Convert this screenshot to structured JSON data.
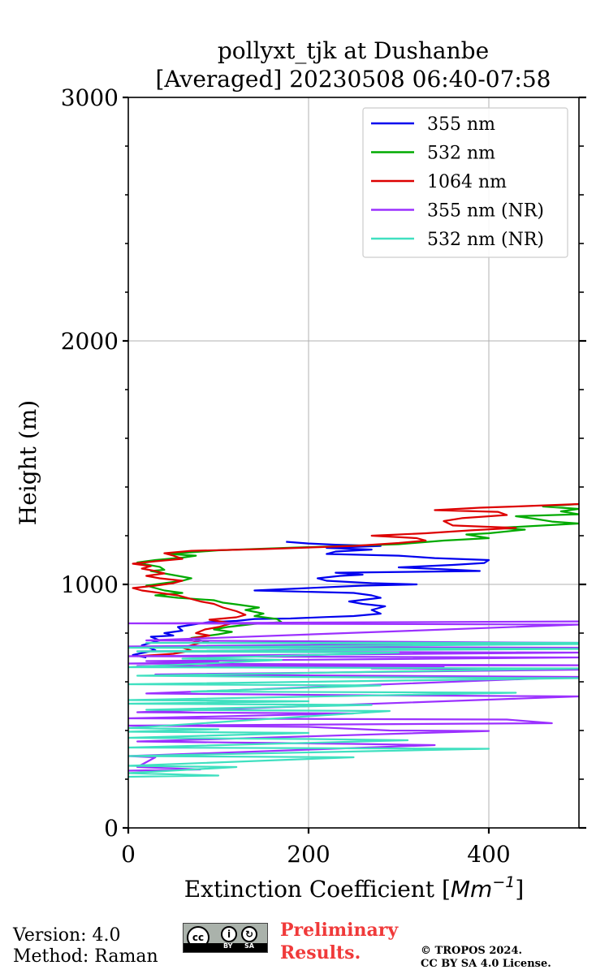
{
  "chart_data": {
    "type": "line",
    "title": "pollyxt_tjk at Dushanbe",
    "subtitle": "[Averaged] 20230508 06:40-07:58",
    "xlabel": "Extinction Coefficient [Mm⁻¹]",
    "xlabel_main": "Extinction Coefficient [",
    "xlabel_unit_base": "Mm",
    "xlabel_unit_exp": "−1",
    "xlabel_close": "]",
    "ylabel": "Height (m)",
    "xlim": [
      0,
      500
    ],
    "ylim": [
      0,
      3000
    ],
    "xticks": [
      "0",
      "200",
      "400"
    ],
    "xtick_values": [
      0,
      200,
      400
    ],
    "yticks": [
      "0",
      "1000",
      "2000",
      "3000"
    ],
    "ytick_values": [
      0,
      1000,
      2000,
      3000
    ],
    "grid": true,
    "legend_position": "top-right",
    "series": [
      {
        "name": "355 nm",
        "color": "#0000ee",
        "points": [
          [
            20,
            700
          ],
          [
            5,
            710
          ],
          [
            30,
            730
          ],
          [
            15,
            750
          ],
          [
            35,
            770
          ],
          [
            25,
            785
          ],
          [
            50,
            790
          ],
          [
            40,
            800
          ],
          [
            60,
            810
          ],
          [
            55,
            825
          ],
          [
            80,
            840
          ],
          [
            90,
            845
          ],
          [
            120,
            850
          ],
          [
            140,
            858
          ],
          [
            180,
            860
          ],
          [
            220,
            866
          ],
          [
            250,
            870
          ],
          [
            280,
            880
          ],
          [
            270,
            895
          ],
          [
            285,
            910
          ],
          [
            260,
            920
          ],
          [
            245,
            930
          ],
          [
            280,
            945
          ],
          [
            270,
            955
          ],
          [
            250,
            965
          ],
          [
            140,
            975
          ],
          [
            200,
            985
          ],
          [
            260,
            995
          ],
          [
            320,
            1000
          ],
          [
            270,
            1005
          ],
          [
            220,
            1015
          ],
          [
            210,
            1025
          ],
          [
            235,
            1035
          ],
          [
            260,
            1040
          ],
          [
            230,
            1048
          ],
          [
            390,
            1055
          ],
          [
            350,
            1062
          ],
          [
            300,
            1070
          ],
          [
            360,
            1080
          ],
          [
            395,
            1088
          ],
          [
            400,
            1100
          ],
          [
            340,
            1108
          ],
          [
            300,
            1118
          ],
          [
            220,
            1125
          ],
          [
            230,
            1135
          ],
          [
            270,
            1143
          ],
          [
            220,
            1150
          ],
          [
            280,
            1158
          ],
          [
            230,
            1163
          ],
          [
            200,
            1168
          ],
          [
            175,
            1175
          ]
        ]
      },
      {
        "name": "532 nm",
        "color": "#00aa00",
        "points": [
          [
            90,
            760
          ],
          [
            70,
            780
          ],
          [
            100,
            795
          ],
          [
            115,
            805
          ],
          [
            95,
            815
          ],
          [
            110,
            825
          ],
          [
            140,
            838
          ],
          [
            170,
            845
          ],
          [
            165,
            858
          ],
          [
            140,
            870
          ],
          [
            150,
            880
          ],
          [
            130,
            895
          ],
          [
            145,
            905
          ],
          [
            120,
            918
          ],
          [
            105,
            925
          ],
          [
            95,
            935
          ],
          [
            55,
            945
          ],
          [
            30,
            955
          ],
          [
            60,
            965
          ],
          [
            40,
            975
          ],
          [
            30,
            985
          ],
          [
            20,
            995
          ],
          [
            40,
            1005
          ],
          [
            60,
            1015
          ],
          [
            70,
            1025
          ],
          [
            55,
            1035
          ],
          [
            40,
            1045
          ],
          [
            25,
            1055
          ],
          [
            40,
            1060
          ],
          [
            35,
            1072
          ],
          [
            20,
            1082
          ],
          [
            10,
            1090
          ],
          [
            30,
            1100
          ],
          [
            60,
            1110
          ],
          [
            75,
            1118
          ],
          [
            45,
            1125
          ],
          [
            100,
            1140
          ],
          [
            175,
            1150
          ],
          [
            300,
            1165
          ],
          [
            350,
            1180
          ],
          [
            400,
            1190
          ],
          [
            375,
            1205
          ],
          [
            400,
            1210
          ],
          [
            440,
            1225
          ],
          [
            410,
            1232
          ],
          [
            500,
            1250
          ],
          [
            470,
            1258
          ],
          [
            450,
            1270
          ],
          [
            430,
            1280
          ],
          [
            500,
            1288
          ],
          [
            480,
            1300
          ],
          [
            500,
            1310
          ],
          [
            460,
            1320
          ],
          [
            500,
            1330
          ]
        ]
      },
      {
        "name": "1064 nm",
        "color": "#dd0000",
        "points": [
          [
            10,
            705
          ],
          [
            50,
            715
          ],
          [
            70,
            728
          ],
          [
            60,
            740
          ],
          [
            80,
            760
          ],
          [
            65,
            775
          ],
          [
            90,
            790
          ],
          [
            75,
            800
          ],
          [
            85,
            815
          ],
          [
            100,
            825
          ],
          [
            115,
            840
          ],
          [
            90,
            855
          ],
          [
            120,
            865
          ],
          [
            130,
            875
          ],
          [
            120,
            890
          ],
          [
            105,
            905
          ],
          [
            95,
            920
          ],
          [
            80,
            930
          ],
          [
            65,
            945
          ],
          [
            55,
            955
          ],
          [
            35,
            965
          ],
          [
            15,
            975
          ],
          [
            5,
            985
          ],
          [
            30,
            995
          ],
          [
            50,
            1005
          ],
          [
            60,
            1015
          ],
          [
            35,
            1025
          ],
          [
            20,
            1035
          ],
          [
            40,
            1045
          ],
          [
            30,
            1055
          ],
          [
            15,
            1065
          ],
          [
            25,
            1075
          ],
          [
            5,
            1085
          ],
          [
            30,
            1095
          ],
          [
            60,
            1105
          ],
          [
            50,
            1118
          ],
          [
            40,
            1128
          ],
          [
            70,
            1138
          ],
          [
            150,
            1145
          ],
          [
            250,
            1158
          ],
          [
            300,
            1170
          ],
          [
            330,
            1180
          ],
          [
            320,
            1190
          ],
          [
            270,
            1200
          ],
          [
            330,
            1210
          ],
          [
            380,
            1222
          ],
          [
            430,
            1232
          ],
          [
            360,
            1242
          ],
          [
            350,
            1260
          ],
          [
            370,
            1272
          ],
          [
            420,
            1285
          ],
          [
            410,
            1298
          ],
          [
            340,
            1305
          ],
          [
            390,
            1315
          ],
          [
            430,
            1320
          ],
          [
            500,
            1330
          ]
        ]
      },
      {
        "name": "355 nm (NR)",
        "color": "#9b30ff",
        "points": [
          [
            0,
            235
          ],
          [
            80,
            240
          ],
          [
            10,
            250
          ],
          [
            30,
            290
          ],
          [
            0,
            295
          ],
          [
            340,
            340
          ],
          [
            250,
            345
          ],
          [
            10,
            355
          ],
          [
            400,
            398
          ],
          [
            290,
            400
          ],
          [
            200,
            415
          ],
          [
            0,
            420
          ],
          [
            470,
            430
          ],
          [
            420,
            445
          ],
          [
            0,
            450
          ],
          [
            250,
            470
          ],
          [
            10,
            475
          ],
          [
            500,
            540
          ],
          [
            250,
            545
          ],
          [
            20,
            552
          ],
          [
            500,
            620
          ],
          [
            30,
            630
          ],
          [
            500,
            650
          ],
          [
            270,
            655
          ],
          [
            350,
            660
          ],
          [
            10,
            665
          ],
          [
            500,
            668
          ],
          [
            0,
            675
          ],
          [
            100,
            680
          ],
          [
            20,
            685
          ],
          [
            500,
            700
          ],
          [
            0,
            705
          ],
          [
            500,
            720
          ],
          [
            10,
            725
          ],
          [
            500,
            740
          ],
          [
            0,
            745
          ],
          [
            500,
            760
          ],
          [
            20,
            770
          ],
          [
            500,
            835
          ],
          [
            0,
            840
          ],
          [
            500,
            848
          ]
        ]
      },
      {
        "name": "532 nm (NR)",
        "color": "#40e0c0",
        "points": [
          [
            0,
            210
          ],
          [
            100,
            215
          ],
          [
            0,
            225
          ],
          [
            120,
            250
          ],
          [
            0,
            255
          ],
          [
            250,
            290
          ],
          [
            0,
            295
          ],
          [
            400,
            325
          ],
          [
            0,
            330
          ],
          [
            310,
            360
          ],
          [
            200,
            365
          ],
          [
            0,
            370
          ],
          [
            200,
            390
          ],
          [
            0,
            395
          ],
          [
            100,
            405
          ],
          [
            0,
            410
          ],
          [
            290,
            480
          ],
          [
            20,
            485
          ],
          [
            270,
            505
          ],
          [
            0,
            510
          ],
          [
            200,
            520
          ],
          [
            0,
            525
          ],
          [
            430,
            555
          ],
          [
            70,
            560
          ],
          [
            280,
            585
          ],
          [
            0,
            590
          ],
          [
            500,
            615
          ],
          [
            180,
            620
          ],
          [
            10,
            625
          ],
          [
            500,
            655
          ],
          [
            0,
            660
          ],
          [
            170,
            690
          ],
          [
            60,
            695
          ],
          [
            300,
            720
          ],
          [
            10,
            725
          ],
          [
            500,
            735
          ],
          [
            0,
            740
          ],
          [
            500,
            755
          ],
          [
            20,
            760
          ],
          [
            500,
            760
          ]
        ]
      }
    ]
  },
  "footer": {
    "version": "Version: 4.0",
    "method": "Method: Raman",
    "preliminary_line1": "Preliminary",
    "preliminary_line2": "Results.",
    "copyright_line1": "© TROPOS 2024.",
    "copyright_line2": "CC BY SA 4.0 License.",
    "cc_badge": {
      "cc": "cc",
      "by": "BY",
      "sa": "SA",
      "icons": [
        "cc-icon",
        "by-person-icon",
        "sa-circular-arrow-icon"
      ]
    }
  }
}
